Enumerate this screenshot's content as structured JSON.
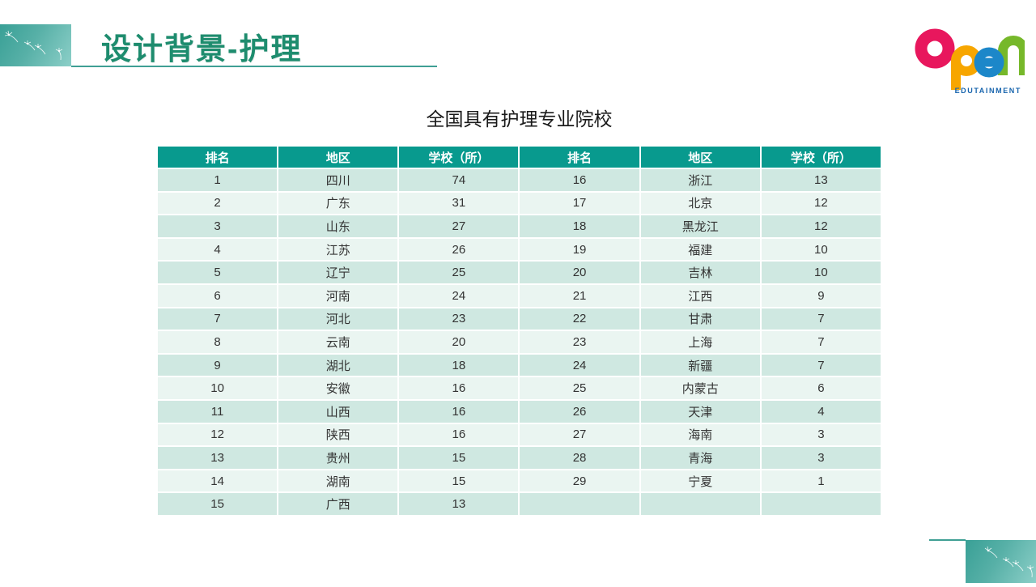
{
  "page": {
    "title": "设计背景-护理",
    "table_title": "全国具有护理专业院校"
  },
  "logo": {
    "word": "open",
    "subtitle": "EDUTAINMENT",
    "letter_colors": {
      "o": "#e8175d",
      "p": "#f7a600",
      "e": "#1c87c9",
      "n": "#76b82a"
    }
  },
  "table": {
    "headers": [
      "排名",
      "地区",
      "学校（所）",
      "排名",
      "地区",
      "学校（所）"
    ],
    "rows": [
      [
        "1",
        "四川",
        "74",
        "16",
        "浙江",
        "13"
      ],
      [
        "2",
        "广东",
        "31",
        "17",
        "北京",
        "12"
      ],
      [
        "3",
        "山东",
        "27",
        "18",
        "黑龙江",
        "12"
      ],
      [
        "4",
        "江苏",
        "26",
        "19",
        "福建",
        "10"
      ],
      [
        "5",
        "辽宁",
        "25",
        "20",
        "吉林",
        "10"
      ],
      [
        "6",
        "河南",
        "24",
        "21",
        "江西",
        "9"
      ],
      [
        "7",
        "河北",
        "23",
        "22",
        "甘肃",
        "7"
      ],
      [
        "8",
        "云南",
        "20",
        "23",
        "上海",
        "7"
      ],
      [
        "9",
        "湖北",
        "18",
        "24",
        "新疆",
        "7"
      ],
      [
        "10",
        "安徽",
        "16",
        "25",
        "内蒙古",
        "6"
      ],
      [
        "11",
        "山西",
        "16",
        "26",
        "天津",
        "4"
      ],
      [
        "12",
        "陕西",
        "16",
        "27",
        "海南",
        "3"
      ],
      [
        "13",
        "贵州",
        "15",
        "28",
        "青海",
        "3"
      ],
      [
        "14",
        "湖南",
        "15",
        "29",
        "宁夏",
        "1"
      ],
      [
        "15",
        "广西",
        "13",
        "",
        "",
        ""
      ]
    ]
  },
  "colors": {
    "title_text": "#1e8c6e",
    "accent_line": "#3f9f94",
    "header_bg": "#089a8e",
    "row_odd": "#cfe8e1",
    "row_even": "#eaf5f1",
    "logo_subtitle": "#1764ad"
  }
}
